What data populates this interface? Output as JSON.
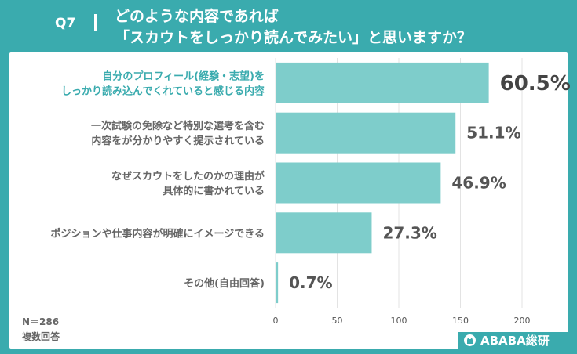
{
  "header": {
    "question_no": "Q7",
    "title_line1": "どのような内容であれば",
    "title_line2": "「スカウトをしっかり読んでみたい」と思いますか？"
  },
  "footnote": {
    "n": "N＝286",
    "type": "複数回答"
  },
  "brand": {
    "name": "ABABA総研"
  },
  "colors": {
    "background": "#3aabae",
    "bar": "#7ecdcb",
    "highlight_text": "#3aabae",
    "label_text": "#666666"
  },
  "chart_data": {
    "type": "bar",
    "orientation": "horizontal",
    "categories": [
      [
        "自分のプロフィール(経験・志望)を",
        "しっかり読み込んでくれていると感じる内容"
      ],
      [
        "一次試験の免除など特別な選考を含む",
        "内容をが分かりやすく提示されている"
      ],
      [
        "なぜスカウトをしたのかの理由が",
        "具体的に書かれている"
      ],
      [
        "ポジションや仕事内容が明確にイメージできる"
      ],
      [
        "その他(自由回答)"
      ]
    ],
    "values": [
      173,
      146,
      134,
      78,
      2
    ],
    "value_labels": [
      "60.5%",
      "51.1%",
      "46.9%",
      "27.3%",
      "0.7%"
    ],
    "highlight_index": 0,
    "xlim": [
      0,
      200
    ],
    "xticks": [
      "0",
      "50",
      "100",
      "150",
      "200"
    ],
    "grid": true
  }
}
